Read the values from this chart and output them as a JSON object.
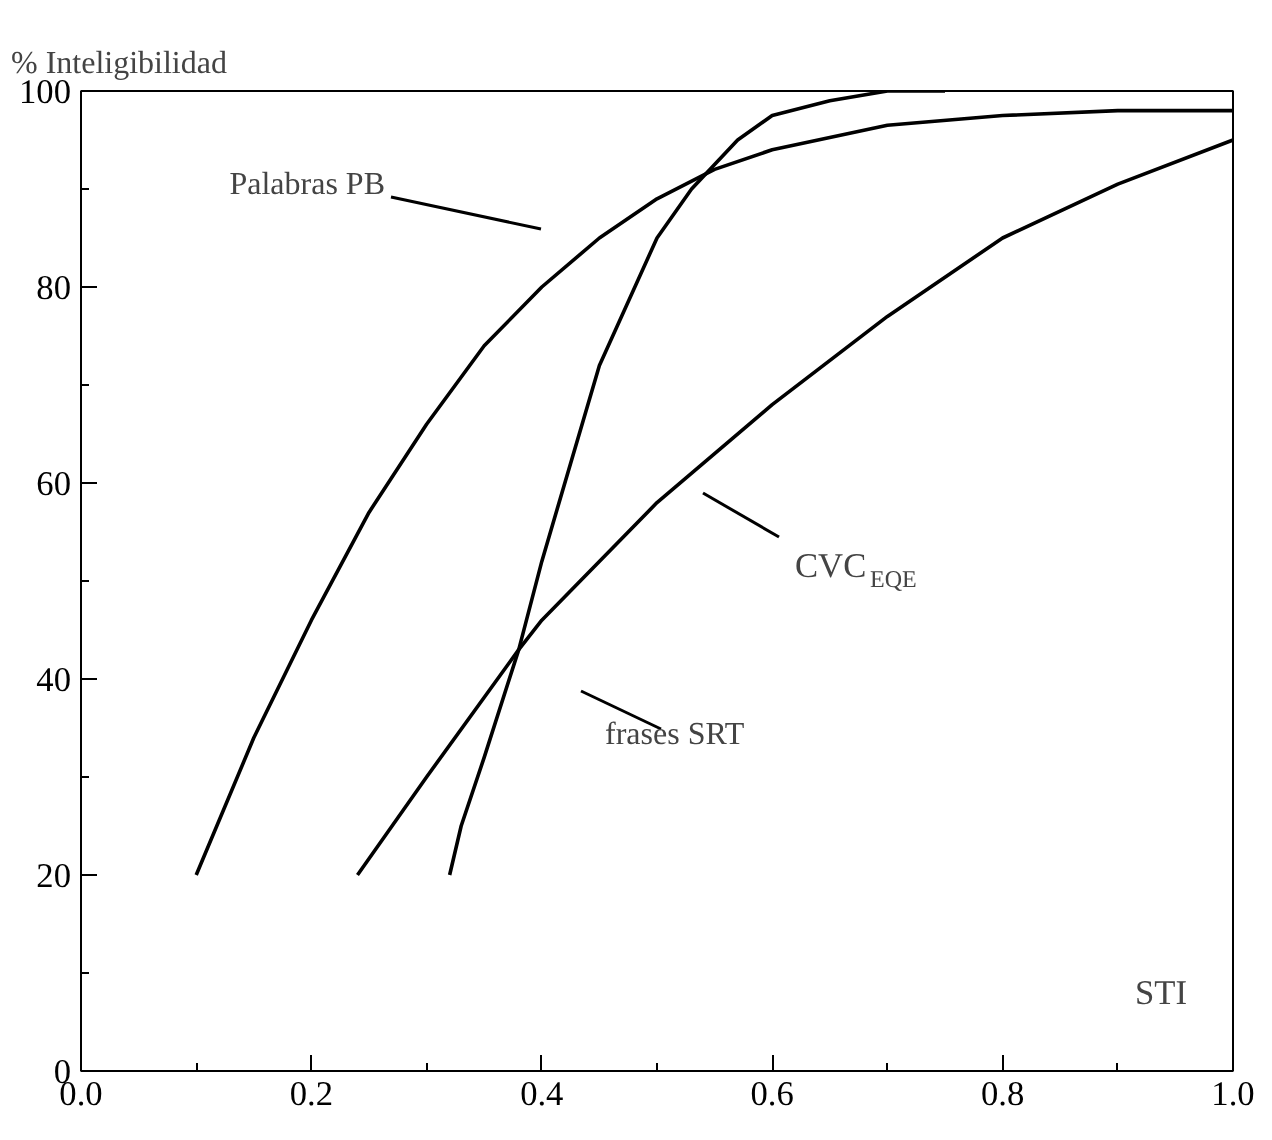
{
  "chart_data": {
    "type": "line",
    "xlabel": "STI",
    "ylabel": "% Inteligibilidad",
    "xlim": [
      0.0,
      1.0
    ],
    "ylim": [
      0,
      100
    ],
    "xticks": [
      {
        "value": 0.0,
        "label": "0.0"
      },
      {
        "value": 0.2,
        "label": "0.2"
      },
      {
        "value": 0.4,
        "label": "0.4"
      },
      {
        "value": 0.6,
        "label": "0.6"
      },
      {
        "value": 0.8,
        "label": "0.8"
      },
      {
        "value": 1.0,
        "label": "1.0"
      }
    ],
    "yticks": [
      0,
      20,
      40,
      60,
      80,
      100
    ],
    "grid": false,
    "marker": "none",
    "line_style": "solid",
    "series": [
      {
        "color": "#000000",
        "x": [
          0.1,
          0.15,
          0.2,
          0.25,
          0.3,
          0.35,
          0.4,
          0.45,
          0.5,
          0.55,
          0.6,
          0.7,
          0.8,
          0.9,
          1.0
        ],
        "values": [
          20,
          34,
          46,
          57,
          66,
          74,
          80,
          85,
          89,
          92,
          94,
          96.5,
          97.5,
          98,
          98
        ]
      },
      {
        "color": "#000000",
        "x": [
          0.32,
          0.33,
          0.35,
          0.38,
          0.4,
          0.45,
          0.5,
          0.53,
          0.57,
          0.6,
          0.65,
          0.7,
          0.75
        ],
        "values": [
          20,
          25,
          32,
          43,
          52,
          72,
          85,
          90,
          95,
          97.5,
          99,
          100,
          100
        ]
      },
      {
        "color": "#000000",
        "x": [
          0.24,
          0.3,
          0.38,
          0.4,
          0.5,
          0.6,
          0.7,
          0.8,
          0.9,
          1.0
        ],
        "values": [
          20,
          30,
          43,
          46,
          58,
          68,
          77,
          85,
          90.5,
          95
        ]
      }
    ],
    "annotations": [
      "Palabras PB",
      "CVC$_{EQE}$",
      "frases SRT"
    ]
  }
}
